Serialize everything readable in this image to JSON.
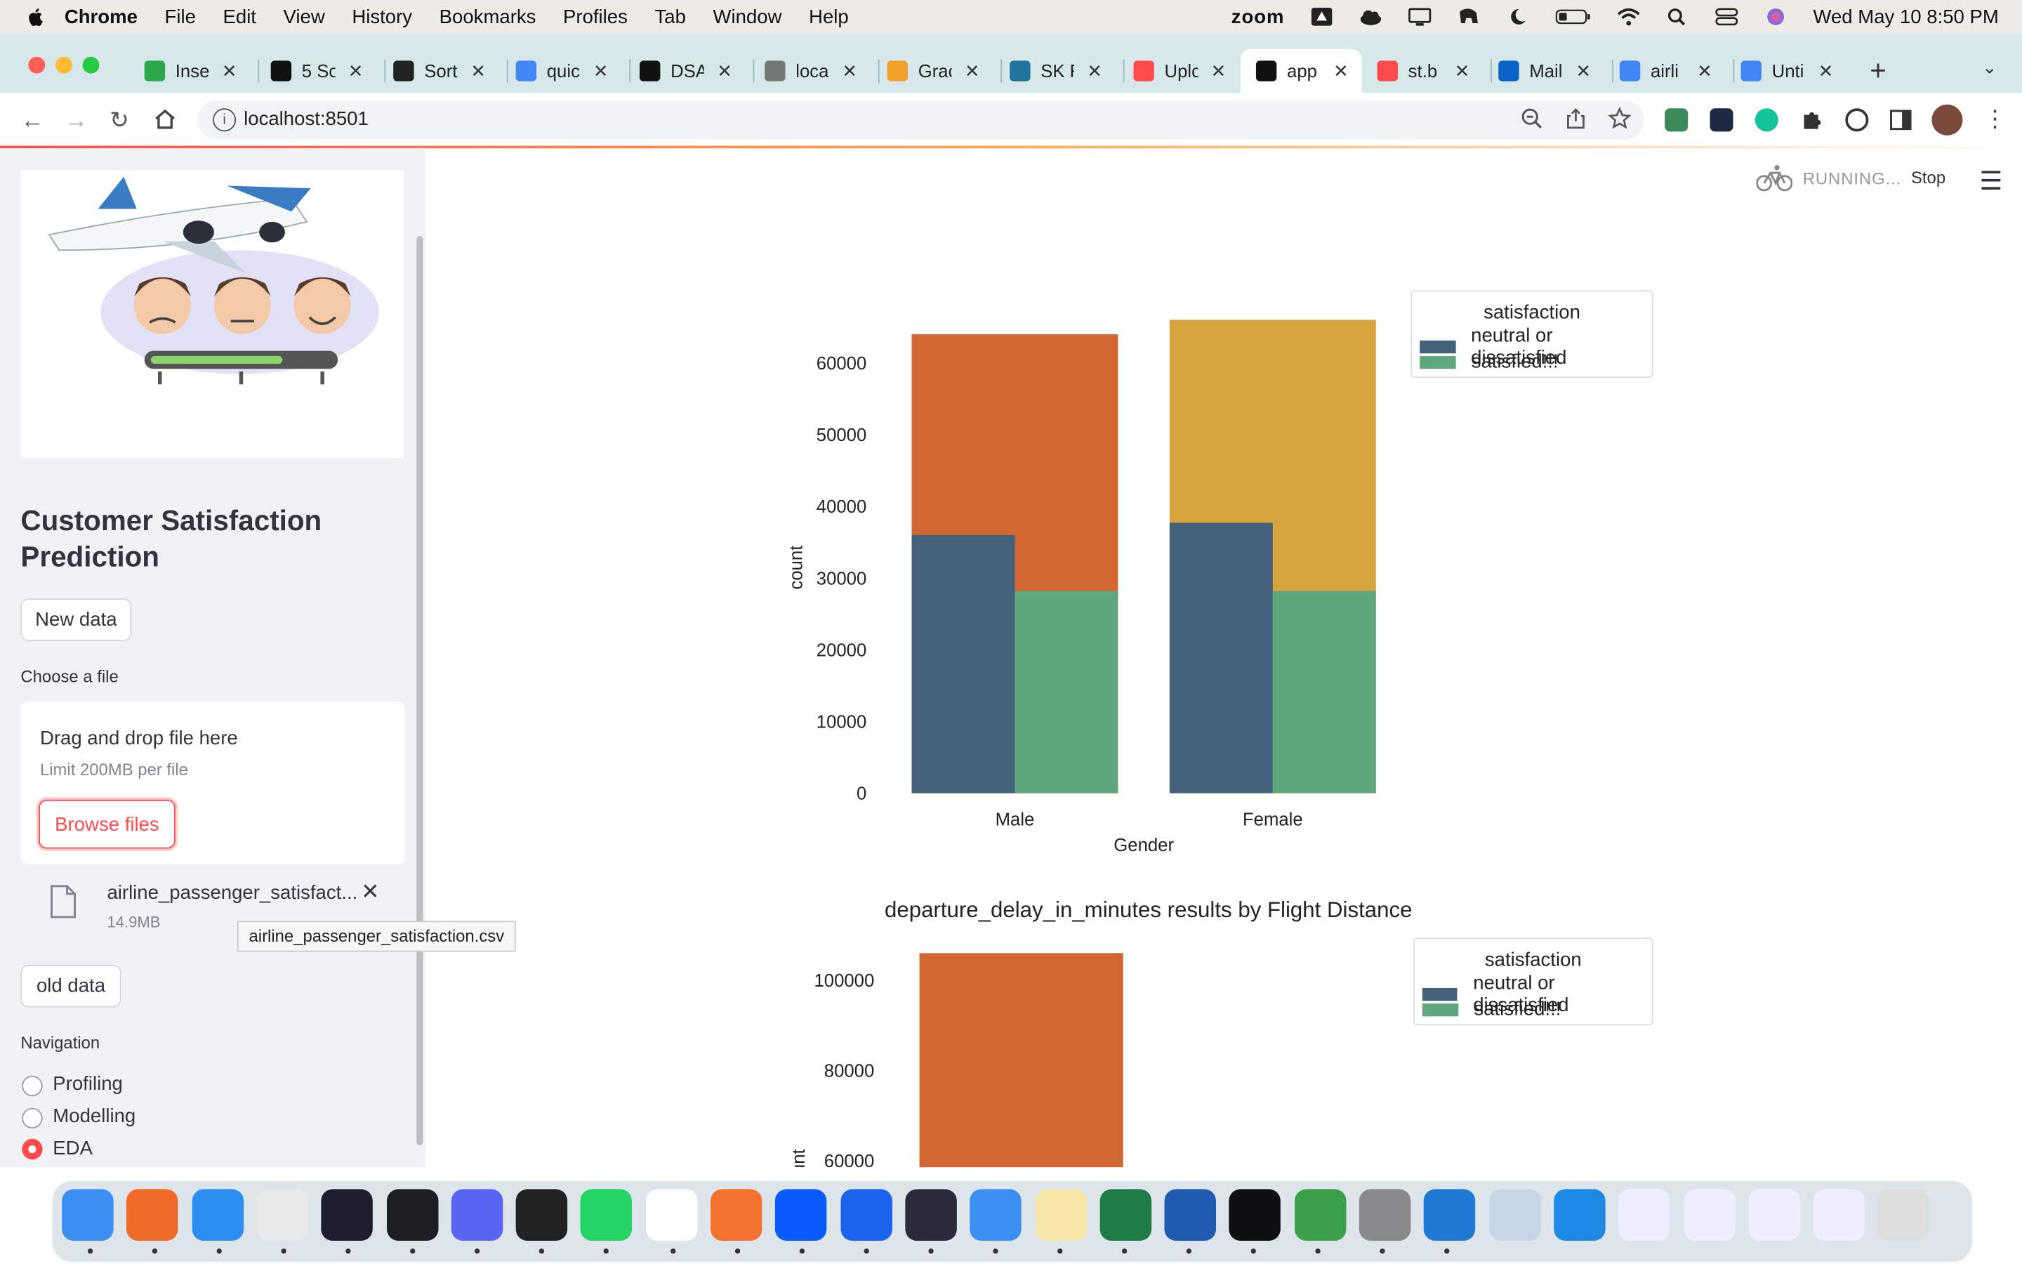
{
  "menubar": {
    "app": "Chrome",
    "items": [
      "File",
      "Edit",
      "View",
      "History",
      "Bookmarks",
      "Profiles",
      "Tab",
      "Window",
      "Help"
    ],
    "zoom": "zoom",
    "datetime": "Wed May 10  8:50 PM"
  },
  "tabs": [
    {
      "label": "Inse",
      "color": "#2aa84a"
    },
    {
      "label": "5 Sc",
      "color": "#111"
    },
    {
      "label": "Sort",
      "color": "#222"
    },
    {
      "label": "quic",
      "color": "#4285f4"
    },
    {
      "label": "DSA",
      "color": "#111"
    },
    {
      "label": "loca",
      "color": "#777"
    },
    {
      "label": "Grac",
      "color": "#f4a12b"
    },
    {
      "label": "SK F",
      "color": "#21759b"
    },
    {
      "label": "Uplc",
      "color": "#ff4b4b"
    },
    {
      "label": "app",
      "color": "#111"
    },
    {
      "label": "st.b",
      "color": "#ff4b4b"
    },
    {
      "label": "Mail",
      "color": "#0a64c8"
    },
    {
      "label": "airli",
      "color": "#4285f4"
    },
    {
      "label": "Unti",
      "color": "#4285f4"
    }
  ],
  "address": {
    "url": "localhost:8501"
  },
  "status": {
    "running": "RUNNING...",
    "stop": "Stop"
  },
  "sidebar": {
    "title": "Customer Satisfaction Prediction",
    "new_data": "New data",
    "choose_file": "Choose a file",
    "drop_text": "Drag and drop file here",
    "limit": "Limit 200MB per file",
    "browse": "Browse files",
    "file_name": "airline_passenger_satisfact...",
    "file_size": "14.9MB",
    "tooltip": "airline_passenger_satisfaction.csv",
    "old_data": "old data",
    "nav_label": "Navigation",
    "nav_options": [
      "Profiling",
      "Modelling",
      "EDA"
    ],
    "nav_selected": "EDA"
  },
  "colors": {
    "neutral": "#44627c",
    "satisfied": "#5fa77c",
    "orange": "#d16832",
    "gold": "#d6a33c",
    "accent": "#ff4b4b"
  },
  "chart_data": [
    {
      "type": "bar",
      "title": "",
      "xlabel": "Gender",
      "ylabel": "count",
      "categories": [
        "Male",
        "Female"
      ],
      "ylim": [
        0,
        66000
      ],
      "yticks": [
        0,
        10000,
        20000,
        30000,
        40000,
        50000,
        60000
      ],
      "totals": [
        64000,
        66000
      ],
      "series": [
        {
          "name": "neutral or dissatisfied",
          "values": [
            36000,
            37700
          ]
        },
        {
          "name": "satisfied!!!",
          "values": [
            28200,
            28200
          ]
        }
      ],
      "legend_title": "satisfaction",
      "legend_position": "outside-right-top"
    },
    {
      "type": "bar",
      "title": "departure_delay_in_minutes results by Flight Distance",
      "ylabel": "count",
      "ylim": [
        0,
        110000
      ],
      "yticks": [
        60000,
        80000,
        100000
      ],
      "first_bar_total": 106000,
      "series": [
        {
          "name": "neutral or dissatisfied"
        },
        {
          "name": "satisfied!!!"
        }
      ],
      "legend_title": "satisfaction",
      "legend_position": "outside-right-top"
    }
  ]
}
